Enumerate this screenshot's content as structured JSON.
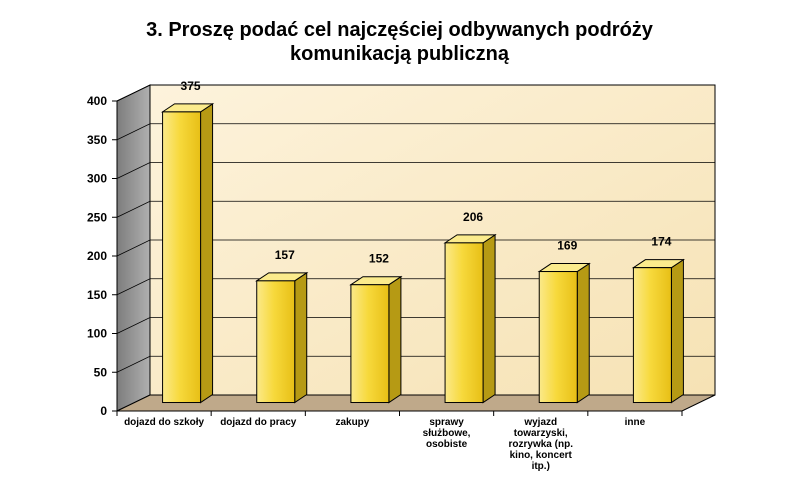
{
  "chart_data": {
    "type": "bar",
    "title_lines": [
      "3. Proszę podać cel najczęściej odbywanych podróży",
      "komunikacją publiczną"
    ],
    "categories": [
      "dojazd do szkoły",
      "dojazd do pracy",
      "zakupy",
      "sprawy\nsłużbowe,\nosobiste",
      "wyjazd\ntowarzyski,\nrozrywka (np.\nkino, koncert\nitp.)",
      "inne"
    ],
    "values": [
      375,
      157,
      152,
      206,
      169,
      174
    ],
    "value_labels": [
      "375",
      "157",
      "152",
      "206",
      "169",
      "174"
    ],
    "ylim": [
      0,
      400
    ],
    "yticks": [
      "0",
      "50",
      "100",
      "150",
      "200",
      "250",
      "300",
      "350",
      "400"
    ],
    "grid": true,
    "legend": "none",
    "colors": {
      "bar_front": "#f5d53a",
      "bar_side": "#b69a14",
      "bar_top": "#fbeb8c",
      "wall": "#fbebc8",
      "side_wall": "#9a9a9a",
      "floor": "#bfa98a"
    }
  }
}
